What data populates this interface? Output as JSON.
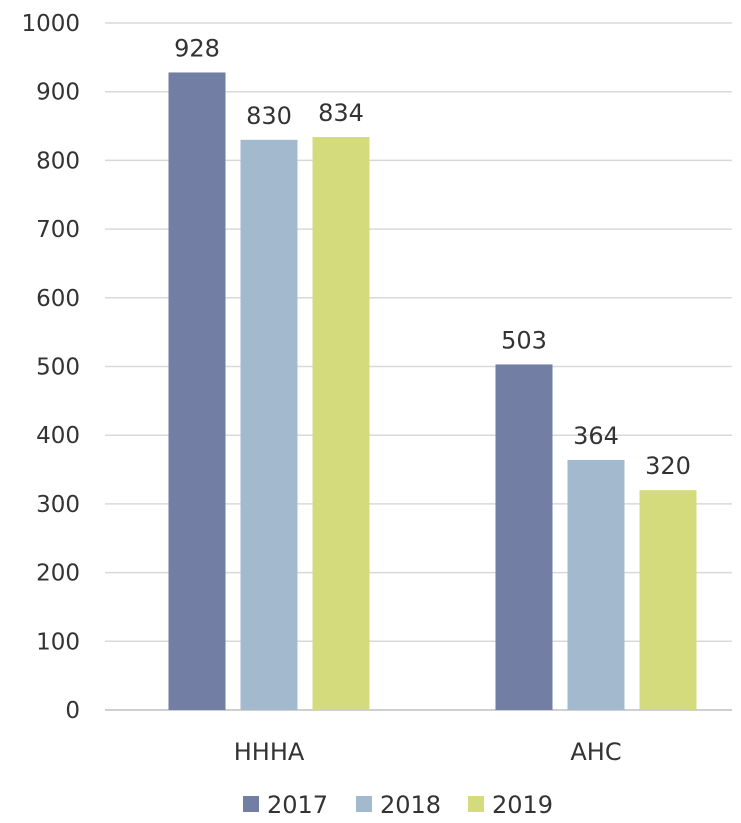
{
  "chart_data": {
    "type": "bar",
    "categories": [
      "HHHA",
      "AHC"
    ],
    "series": [
      {
        "name": "2017",
        "values": [
          928,
          503
        ],
        "color": "#727ea3"
      },
      {
        "name": "2018",
        "values": [
          830,
          364
        ],
        "color": "#a3bace"
      },
      {
        "name": "2019",
        "values": [
          834,
          320
        ],
        "color": "#d4db7c"
      }
    ],
    "ylim": [
      0,
      1000
    ],
    "yticks": [
      0,
      100,
      200,
      300,
      400,
      500,
      600,
      700,
      800,
      900,
      1000
    ],
    "grid": true,
    "legend": "bottom",
    "data_labels": true
  }
}
